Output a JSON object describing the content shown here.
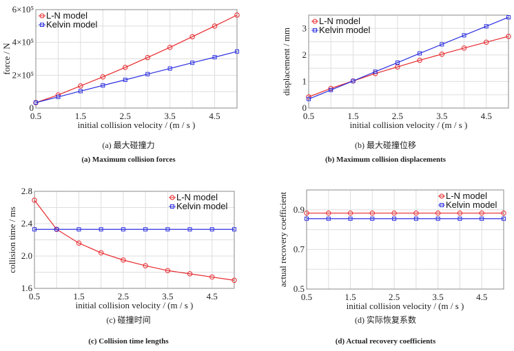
{
  "colors": {
    "ln": "#e8262a",
    "kelvin": "#2a2ee0",
    "grid": "#dddddd",
    "axis": "#888888"
  },
  "legend": {
    "ln": "L-N model",
    "kelvin": "Kelvin model"
  },
  "chart_data": [
    {
      "id": "a",
      "type": "line",
      "caption_cn": "(a) 最大碰撞力",
      "caption_en": "(a)  Maximum collision forces",
      "xlabel": "initial collision velocity / (m / s )",
      "ylabel": "force / N",
      "x": [
        0.5,
        1.0,
        1.5,
        2.0,
        2.5,
        3.0,
        3.5,
        4.0,
        4.5,
        5.0
      ],
      "xlim": [
        0.5,
        5.0
      ],
      "xticks": [
        0.5,
        1.5,
        2.5,
        3.5,
        4.5
      ],
      "xtick_labels": [
        "0.5",
        "1.5",
        "2.5",
        "3.5",
        "4.5"
      ],
      "ylim": [
        0,
        600000
      ],
      "yticks": [
        0,
        200000,
        400000,
        600000
      ],
      "ytick_labels": [
        "0",
        "2×10⁵",
        "4×10⁵",
        "6×10⁵"
      ],
      "legend_position": "top-left",
      "series": [
        {
          "name": "L-N model",
          "values": [
            33000,
            80000,
            135000,
            190000,
            248000,
            308000,
            370000,
            435000,
            500000,
            567000
          ]
        },
        {
          "name": "Kelvin model",
          "values": [
            33000,
            68000,
            103000,
            138000,
            172000,
            207000,
            241000,
            276000,
            310000,
            345000
          ]
        }
      ]
    },
    {
      "id": "b",
      "type": "line",
      "caption_cn": "(b) 最大碰撞位移",
      "caption_en": "(b)  Maximum collision displacements",
      "xlabel": "initial collision velocity / (m / s )",
      "ylabel": "displacement / mm",
      "x": [
        0.5,
        1.0,
        1.5,
        2.0,
        2.5,
        3.0,
        3.5,
        4.0,
        4.5,
        5.0
      ],
      "xlim": [
        0.5,
        5.0
      ],
      "xticks": [
        0.5,
        1.5,
        2.5,
        3.5,
        4.5
      ],
      "xtick_labels": [
        "0.5",
        "1.5",
        "2.5",
        "3.5",
        "4.5"
      ],
      "ylim": [
        0,
        3.5
      ],
      "yticks": [
        0,
        1,
        2,
        3
      ],
      "ytick_labels": [
        "0",
        "1",
        "2",
        "3"
      ],
      "legend_position": "top-left",
      "series": [
        {
          "name": "L-N model",
          "values": [
            0.42,
            0.74,
            1.02,
            1.3,
            1.55,
            1.8,
            2.03,
            2.26,
            2.48,
            2.7
          ]
        },
        {
          "name": "Kelvin model",
          "values": [
            0.34,
            0.68,
            1.02,
            1.37,
            1.71,
            2.06,
            2.4,
            2.74,
            3.08,
            3.42
          ]
        }
      ]
    },
    {
      "id": "c",
      "type": "line",
      "caption_cn": "(c) 碰撞时间",
      "caption_en": "(c)  Collision time lengths",
      "xlabel": "initial collision velocity / (m / s )",
      "ylabel": "collision time / ms",
      "x": [
        0.5,
        1.0,
        1.5,
        2.0,
        2.5,
        3.0,
        3.5,
        4.0,
        4.5,
        5.0
      ],
      "xlim": [
        0.5,
        5.0
      ],
      "xticks": [
        0.5,
        1.5,
        2.5,
        3.5,
        4.5
      ],
      "xtick_labels": [
        "0.5",
        "1.5",
        "2.5",
        "3.5",
        "4.5"
      ],
      "ylim": [
        1.6,
        2.8
      ],
      "yticks": [
        1.6,
        2.0,
        2.4,
        2.8
      ],
      "ytick_labels": [
        "1.6",
        "2.0",
        "2.4",
        "2.8"
      ],
      "legend_position": "top-right",
      "series": [
        {
          "name": "L-N model",
          "values": [
            2.69,
            2.33,
            2.16,
            2.04,
            1.95,
            1.88,
            1.82,
            1.78,
            1.74,
            1.7
          ]
        },
        {
          "name": "Kelvin model",
          "values": [
            2.33,
            2.33,
            2.33,
            2.33,
            2.33,
            2.33,
            2.33,
            2.33,
            2.33,
            2.33
          ]
        }
      ]
    },
    {
      "id": "d",
      "type": "line",
      "caption_cn": "(d) 实际恢复系数",
      "caption_en": "(d)  Actual recovery coefficients",
      "xlabel": "initial collision velocity / (m / s )",
      "ylabel": "actual recovery coefficient",
      "x": [
        0.5,
        1.0,
        1.5,
        2.0,
        2.5,
        3.0,
        3.5,
        4.0,
        4.5,
        5.0
      ],
      "xlim": [
        0.5,
        5.0
      ],
      "xticks": [
        0.5,
        1.5,
        2.5,
        3.5,
        4.5
      ],
      "xtick_labels": [
        "0.5",
        "1.5",
        "2.5",
        "3.5",
        "4.5"
      ],
      "ylim": [
        0.5,
        1.0
      ],
      "yticks": [
        0.5,
        0.7,
        0.9
      ],
      "ytick_labels": [
        "0.5",
        "0.7",
        "0.9"
      ],
      "legend_position": "top-right",
      "series": [
        {
          "name": "L-N model",
          "values": [
            0.883,
            0.883,
            0.883,
            0.883,
            0.883,
            0.883,
            0.883,
            0.883,
            0.883,
            0.883
          ]
        },
        {
          "name": "Kelvin model",
          "values": [
            0.855,
            0.855,
            0.855,
            0.855,
            0.855,
            0.855,
            0.855,
            0.855,
            0.855,
            0.855
          ]
        }
      ]
    }
  ]
}
